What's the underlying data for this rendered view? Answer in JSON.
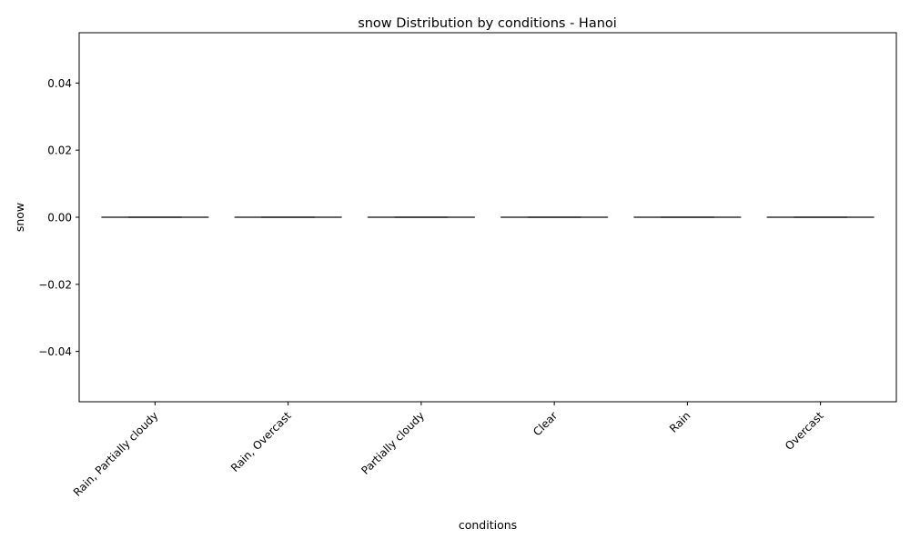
{
  "chart_data": {
    "type": "box",
    "title": "snow Distribution by conditions - Hanoi",
    "xlabel": "conditions",
    "ylabel": "snow",
    "categories": [
      "Rain, Partially cloudy",
      "Rain, Overcast",
      "Partially cloudy",
      "Clear",
      "Rain",
      "Overcast"
    ],
    "boxes": [
      {
        "category": "Rain, Partially cloudy",
        "min": 0.0,
        "q1": 0.0,
        "median": 0.0,
        "q3": 0.0,
        "max": 0.0
      },
      {
        "category": "Rain, Overcast",
        "min": 0.0,
        "q1": 0.0,
        "median": 0.0,
        "q3": 0.0,
        "max": 0.0
      },
      {
        "category": "Partially cloudy",
        "min": 0.0,
        "q1": 0.0,
        "median": 0.0,
        "q3": 0.0,
        "max": 0.0
      },
      {
        "category": "Clear",
        "min": 0.0,
        "q1": 0.0,
        "median": 0.0,
        "q3": 0.0,
        "max": 0.0
      },
      {
        "category": "Rain",
        "min": 0.0,
        "q1": 0.0,
        "median": 0.0,
        "q3": 0.0,
        "max": 0.0
      },
      {
        "category": "Overcast",
        "min": 0.0,
        "q1": 0.0,
        "median": 0.0,
        "q3": 0.0,
        "max": 0.0
      }
    ],
    "ylim": [
      -0.055,
      0.055
    ],
    "yticks": [
      -0.04,
      -0.02,
      0.0,
      0.02,
      0.04
    ],
    "ytick_labels": [
      "−0.04",
      "−0.02",
      "0.00",
      "0.02",
      "0.04"
    ],
    "grid": false,
    "legend": "none",
    "colors": {
      "line": "#3f3f3f",
      "axes": "#000000"
    }
  }
}
